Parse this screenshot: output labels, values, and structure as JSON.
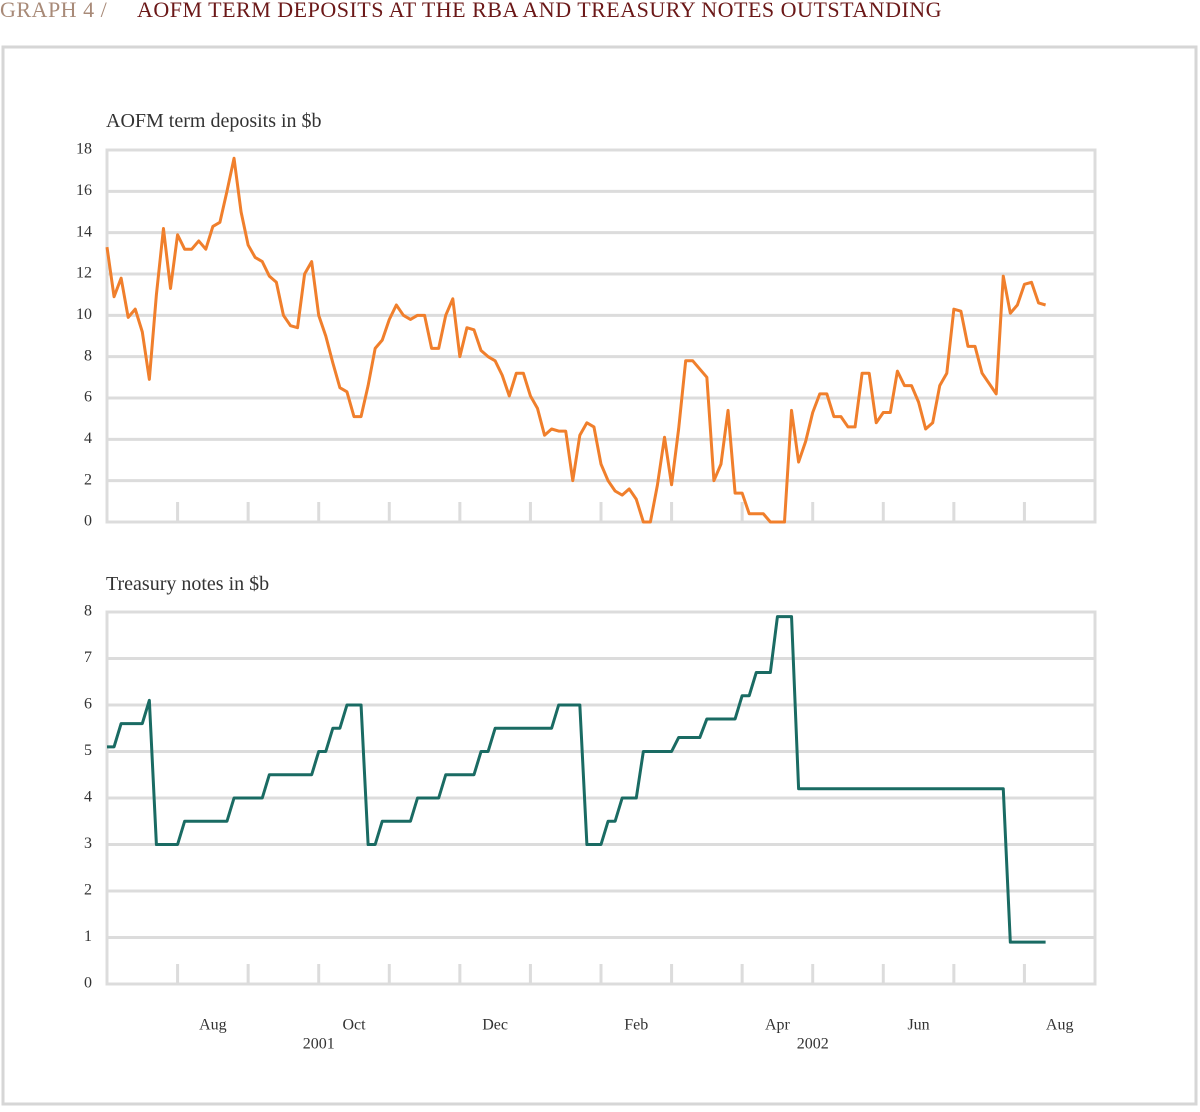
{
  "header": {
    "label": "GRAPH 4 /",
    "title": "AOFM TERM DEPOSITS AT THE RBA AND TREASURY NOTES OUTSTANDING"
  },
  "chart_data": [
    {
      "type": "line",
      "title": "AOFM term deposits in $b",
      "color": "#f07f2c",
      "xlim": [
        "2001-07",
        "2002-09"
      ],
      "xticks": [
        "2001-08",
        "2001-09",
        "2001-10",
        "2001-11",
        "2001-12",
        "2002-01",
        "2002-02",
        "2002-03",
        "2002-04",
        "2002-05",
        "2002-06",
        "2002-07",
        "2002-08"
      ],
      "ylim": [
        0,
        18
      ],
      "yticks": [
        0,
        2,
        4,
        6,
        8,
        10,
        12,
        14,
        16,
        18
      ],
      "grid": true,
      "values": [
        13.3,
        10.9,
        11.8,
        9.9,
        10.3,
        9.2,
        6.9,
        11.0,
        14.2,
        11.3,
        13.9,
        13.2,
        13.2,
        13.6,
        13.2,
        14.3,
        14.5,
        16.0,
        17.6,
        15.0,
        13.4,
        12.8,
        12.6,
        11.9,
        11.6,
        10.0,
        9.5,
        9.4,
        12.0,
        12.6,
        10.0,
        9.0,
        7.7,
        6.5,
        6.3,
        5.1,
        5.1,
        6.6,
        8.4,
        8.8,
        9.8,
        10.5,
        10.0,
        9.8,
        10.0,
        10.0,
        8.4,
        8.4,
        10.0,
        10.8,
        8.0,
        9.4,
        9.3,
        8.3,
        8.0,
        7.8,
        7.1,
        6.1,
        7.2,
        7.2,
        6.1,
        5.5,
        4.2,
        4.5,
        4.4,
        4.4,
        2.0,
        4.2,
        4.8,
        4.6,
        2.8,
        2.0,
        1.5,
        1.3,
        1.6,
        1.1,
        0,
        0,
        1.8,
        4.1,
        1.8,
        4.5,
        7.8,
        7.8,
        7.4,
        7.0,
        2.0,
        2.8,
        5.4,
        1.4,
        1.4,
        0.4,
        0.4,
        0.4,
        0,
        0,
        0,
        5.4,
        2.9,
        3.9,
        5.3,
        6.2,
        6.2,
        5.1,
        5.1,
        4.6,
        4.6,
        7.2,
        7.2,
        4.8,
        5.3,
        5.3,
        7.3,
        6.6,
        6.6,
        5.8,
        4.5,
        4.8,
        6.6,
        7.2,
        10.3,
        10.2,
        8.5,
        8.5,
        7.2,
        6.7,
        6.2,
        11.9,
        10.1,
        10.5,
        11.5,
        11.6,
        10.6,
        10.5,
        null,
        null,
        null,
        null,
        null,
        null,
        null
      ]
    },
    {
      "type": "line",
      "title": "Treasury notes in $b",
      "color": "#1a6b63",
      "xlim": [
        "2001-07",
        "2002-09"
      ],
      "xticks": [
        {
          "value": "2001-08",
          "label": "Aug"
        },
        "2001-09",
        {
          "value": "2001-10",
          "label": "Oct"
        },
        "2001-11",
        {
          "value": "2001-12",
          "label": "Dec"
        },
        "2002-01",
        {
          "value": "2002-02",
          "label": "Feb"
        },
        "2002-03",
        {
          "value": "2002-04",
          "label": "Apr"
        },
        "2002-05",
        {
          "value": "2002-06",
          "label": "Jun"
        },
        "2002-07",
        {
          "value": "2002-08",
          "label": "Aug"
        }
      ],
      "year_labels": [
        {
          "value": "2001-10",
          "label": "2001"
        },
        {
          "value": "2002-05",
          "label": "2002"
        }
      ],
      "ylim": [
        0,
        8
      ],
      "yticks": [
        0,
        1,
        2,
        3,
        4,
        5,
        6,
        7,
        8
      ],
      "grid": true,
      "values": [
        5.1,
        5.1,
        5.6,
        5.6,
        5.6,
        5.6,
        6.1,
        3.0,
        3.0,
        3.0,
        3.0,
        3.5,
        3.5,
        3.5,
        3.5,
        3.5,
        3.5,
        3.5,
        4.0,
        4.0,
        4.0,
        4.0,
        4.0,
        4.5,
        4.5,
        4.5,
        4.5,
        4.5,
        4.5,
        4.5,
        5.0,
        5.0,
        5.5,
        5.5,
        6.0,
        6.0,
        6.0,
        3.0,
        3.0,
        3.5,
        3.5,
        3.5,
        3.5,
        3.5,
        4.0,
        4.0,
        4.0,
        4.0,
        4.5,
        4.5,
        4.5,
        4.5,
        4.5,
        5.0,
        5.0,
        5.5,
        5.5,
        5.5,
        5.5,
        5.5,
        5.5,
        5.5,
        5.5,
        5.5,
        6.0,
        6.0,
        6.0,
        6.0,
        3.0,
        3.0,
        3.0,
        3.5,
        3.5,
        4.0,
        4.0,
        4.0,
        5.0,
        5.0,
        5.0,
        5.0,
        5.0,
        5.3,
        5.3,
        5.3,
        5.3,
        5.7,
        5.7,
        5.7,
        5.7,
        5.7,
        6.2,
        6.2,
        6.7,
        6.7,
        6.7,
        7.9,
        7.9,
        7.9,
        4.2,
        4.2,
        4.2,
        4.2,
        4.2,
        4.2,
        4.2,
        4.2,
        4.2,
        4.2,
        4.2,
        4.2,
        4.2,
        4.2,
        4.2,
        4.2,
        4.2,
        4.2,
        4.2,
        4.2,
        4.2,
        4.2,
        4.2,
        4.2,
        4.2,
        4.2,
        4.2,
        4.2,
        4.2,
        4.2,
        0.9,
        0.9,
        0.9,
        0.9,
        0.9,
        0.9,
        null,
        null,
        null,
        null,
        null,
        null,
        null
      ]
    }
  ]
}
